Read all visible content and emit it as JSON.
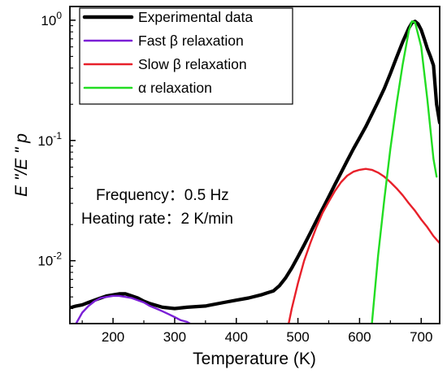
{
  "chart_data": {
    "type": "line",
    "xlabel": "Temperature (K)",
    "ylabel": "E \"/E \" p",
    "x_scale": "linear",
    "y_scale": "log",
    "xlim": [
      130,
      730
    ],
    "ylim": [
      0.003,
      1.3
    ],
    "x_ticks": [
      200,
      300,
      400,
      500,
      600,
      700
    ],
    "y_ticks": [
      {
        "value": 0.01,
        "mantissa": "10",
        "exponent": "-2"
      },
      {
        "value": 0.1,
        "mantissa": "10",
        "exponent": "-1"
      },
      {
        "value": 1,
        "mantissa": "10",
        "exponent": "0"
      }
    ],
    "legend_position": "top-left",
    "grid": false,
    "annotations": [
      "Frequency：0.5 Hz",
      "Heating rate：2 K/min"
    ],
    "series": [
      {
        "name": "Experimental data",
        "color": "#000000",
        "x": [
          133,
          140,
          150,
          160,
          170,
          180,
          190,
          200,
          210,
          220,
          230,
          240,
          250,
          260,
          280,
          300,
          320,
          350,
          380,
          400,
          420,
          440,
          450,
          460,
          470,
          480,
          490,
          500,
          510,
          520,
          530,
          540,
          550,
          560,
          570,
          580,
          590,
          600,
          610,
          620,
          630,
          640,
          650,
          660,
          670,
          680,
          685,
          690,
          695,
          700,
          705,
          710,
          715,
          720,
          725,
          730
        ],
        "y": [
          0.0041,
          0.0042,
          0.0043,
          0.0045,
          0.0047,
          0.0049,
          0.0051,
          0.0052,
          0.0053,
          0.0053,
          0.0051,
          0.0049,
          0.0046,
          0.0044,
          0.0041,
          0.004,
          0.0041,
          0.0042,
          0.0045,
          0.0047,
          0.0049,
          0.0052,
          0.0054,
          0.0056,
          0.0062,
          0.0072,
          0.0087,
          0.0108,
          0.0135,
          0.017,
          0.0215,
          0.027,
          0.034,
          0.043,
          0.054,
          0.068,
          0.085,
          0.105,
          0.13,
          0.165,
          0.21,
          0.27,
          0.36,
          0.49,
          0.66,
          0.86,
          0.95,
          0.98,
          0.93,
          0.83,
          0.7,
          0.58,
          0.5,
          0.42,
          0.2,
          0.14
        ]
      },
      {
        "name": "Fast β relaxation",
        "color": "#7b1fd6",
        "x": [
          140,
          150,
          160,
          170,
          180,
          190,
          200,
          210,
          220,
          230,
          240,
          250,
          260,
          270,
          280,
          290,
          300,
          310,
          320,
          325
        ],
        "y": [
          0.003,
          0.0037,
          0.0042,
          0.0046,
          0.0049,
          0.005,
          0.0051,
          0.0051,
          0.005,
          0.0049,
          0.0047,
          0.0045,
          0.0042,
          0.004,
          0.0038,
          0.0036,
          0.0034,
          0.0032,
          0.0031,
          0.003
        ]
      },
      {
        "name": "Slow β relaxation",
        "color": "#e8202a",
        "x": [
          485,
          490,
          500,
          510,
          520,
          530,
          540,
          550,
          560,
          570,
          580,
          590,
          600,
          610,
          620,
          630,
          640,
          650,
          660,
          670,
          680,
          690,
          700,
          710,
          720,
          730
        ],
        "y": [
          0.003,
          0.004,
          0.0065,
          0.01,
          0.014,
          0.019,
          0.025,
          0.031,
          0.038,
          0.045,
          0.051,
          0.055,
          0.057,
          0.058,
          0.057,
          0.054,
          0.05,
          0.045,
          0.04,
          0.035,
          0.03,
          0.026,
          0.022,
          0.019,
          0.016,
          0.014
        ]
      },
      {
        "name": "α relaxation",
        "color": "#22dd22",
        "x": [
          620,
          630,
          640,
          650,
          660,
          670,
          680,
          685,
          690,
          700,
          710,
          720,
          725
        ],
        "y": [
          0.003,
          0.011,
          0.032,
          0.085,
          0.2,
          0.43,
          0.82,
          0.98,
          0.96,
          0.6,
          0.22,
          0.07,
          0.05
        ]
      }
    ]
  }
}
